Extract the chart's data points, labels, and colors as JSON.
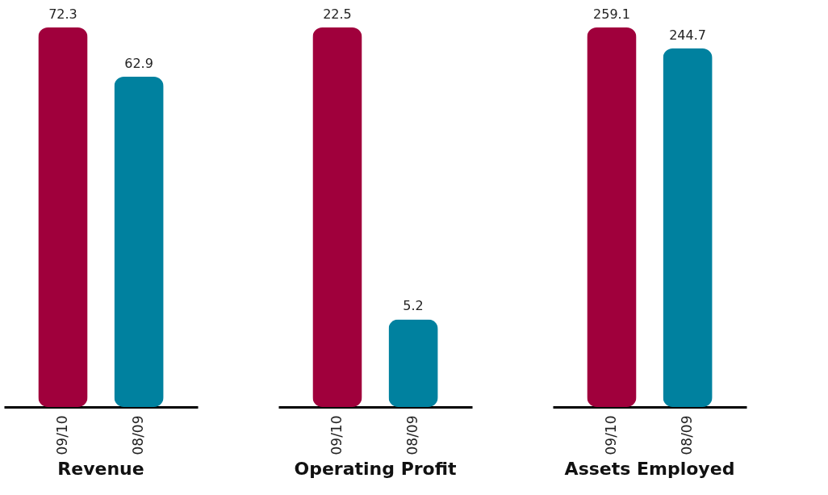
{
  "chart_data": [
    {
      "type": "bar",
      "title": "Revenue",
      "categories": [
        "09/10",
        "08/09"
      ],
      "values": [
        72.3,
        62.9
      ],
      "colors": [
        "#a0003c",
        "#00819f"
      ],
      "data_labels": true
    },
    {
      "type": "bar",
      "title": "Operating Profit",
      "categories": [
        "09/10",
        "08/09"
      ],
      "values": [
        22.5,
        5.2
      ],
      "colors": [
        "#a0003c",
        "#00819f"
      ],
      "data_labels": true
    },
    {
      "type": "bar",
      "title": "Assets Employed",
      "categories": [
        "09/10",
        "08/09"
      ],
      "values": [
        259.1,
        244.7
      ],
      "colors": [
        "#a0003c",
        "#00819f"
      ],
      "data_labels": true
    }
  ]
}
